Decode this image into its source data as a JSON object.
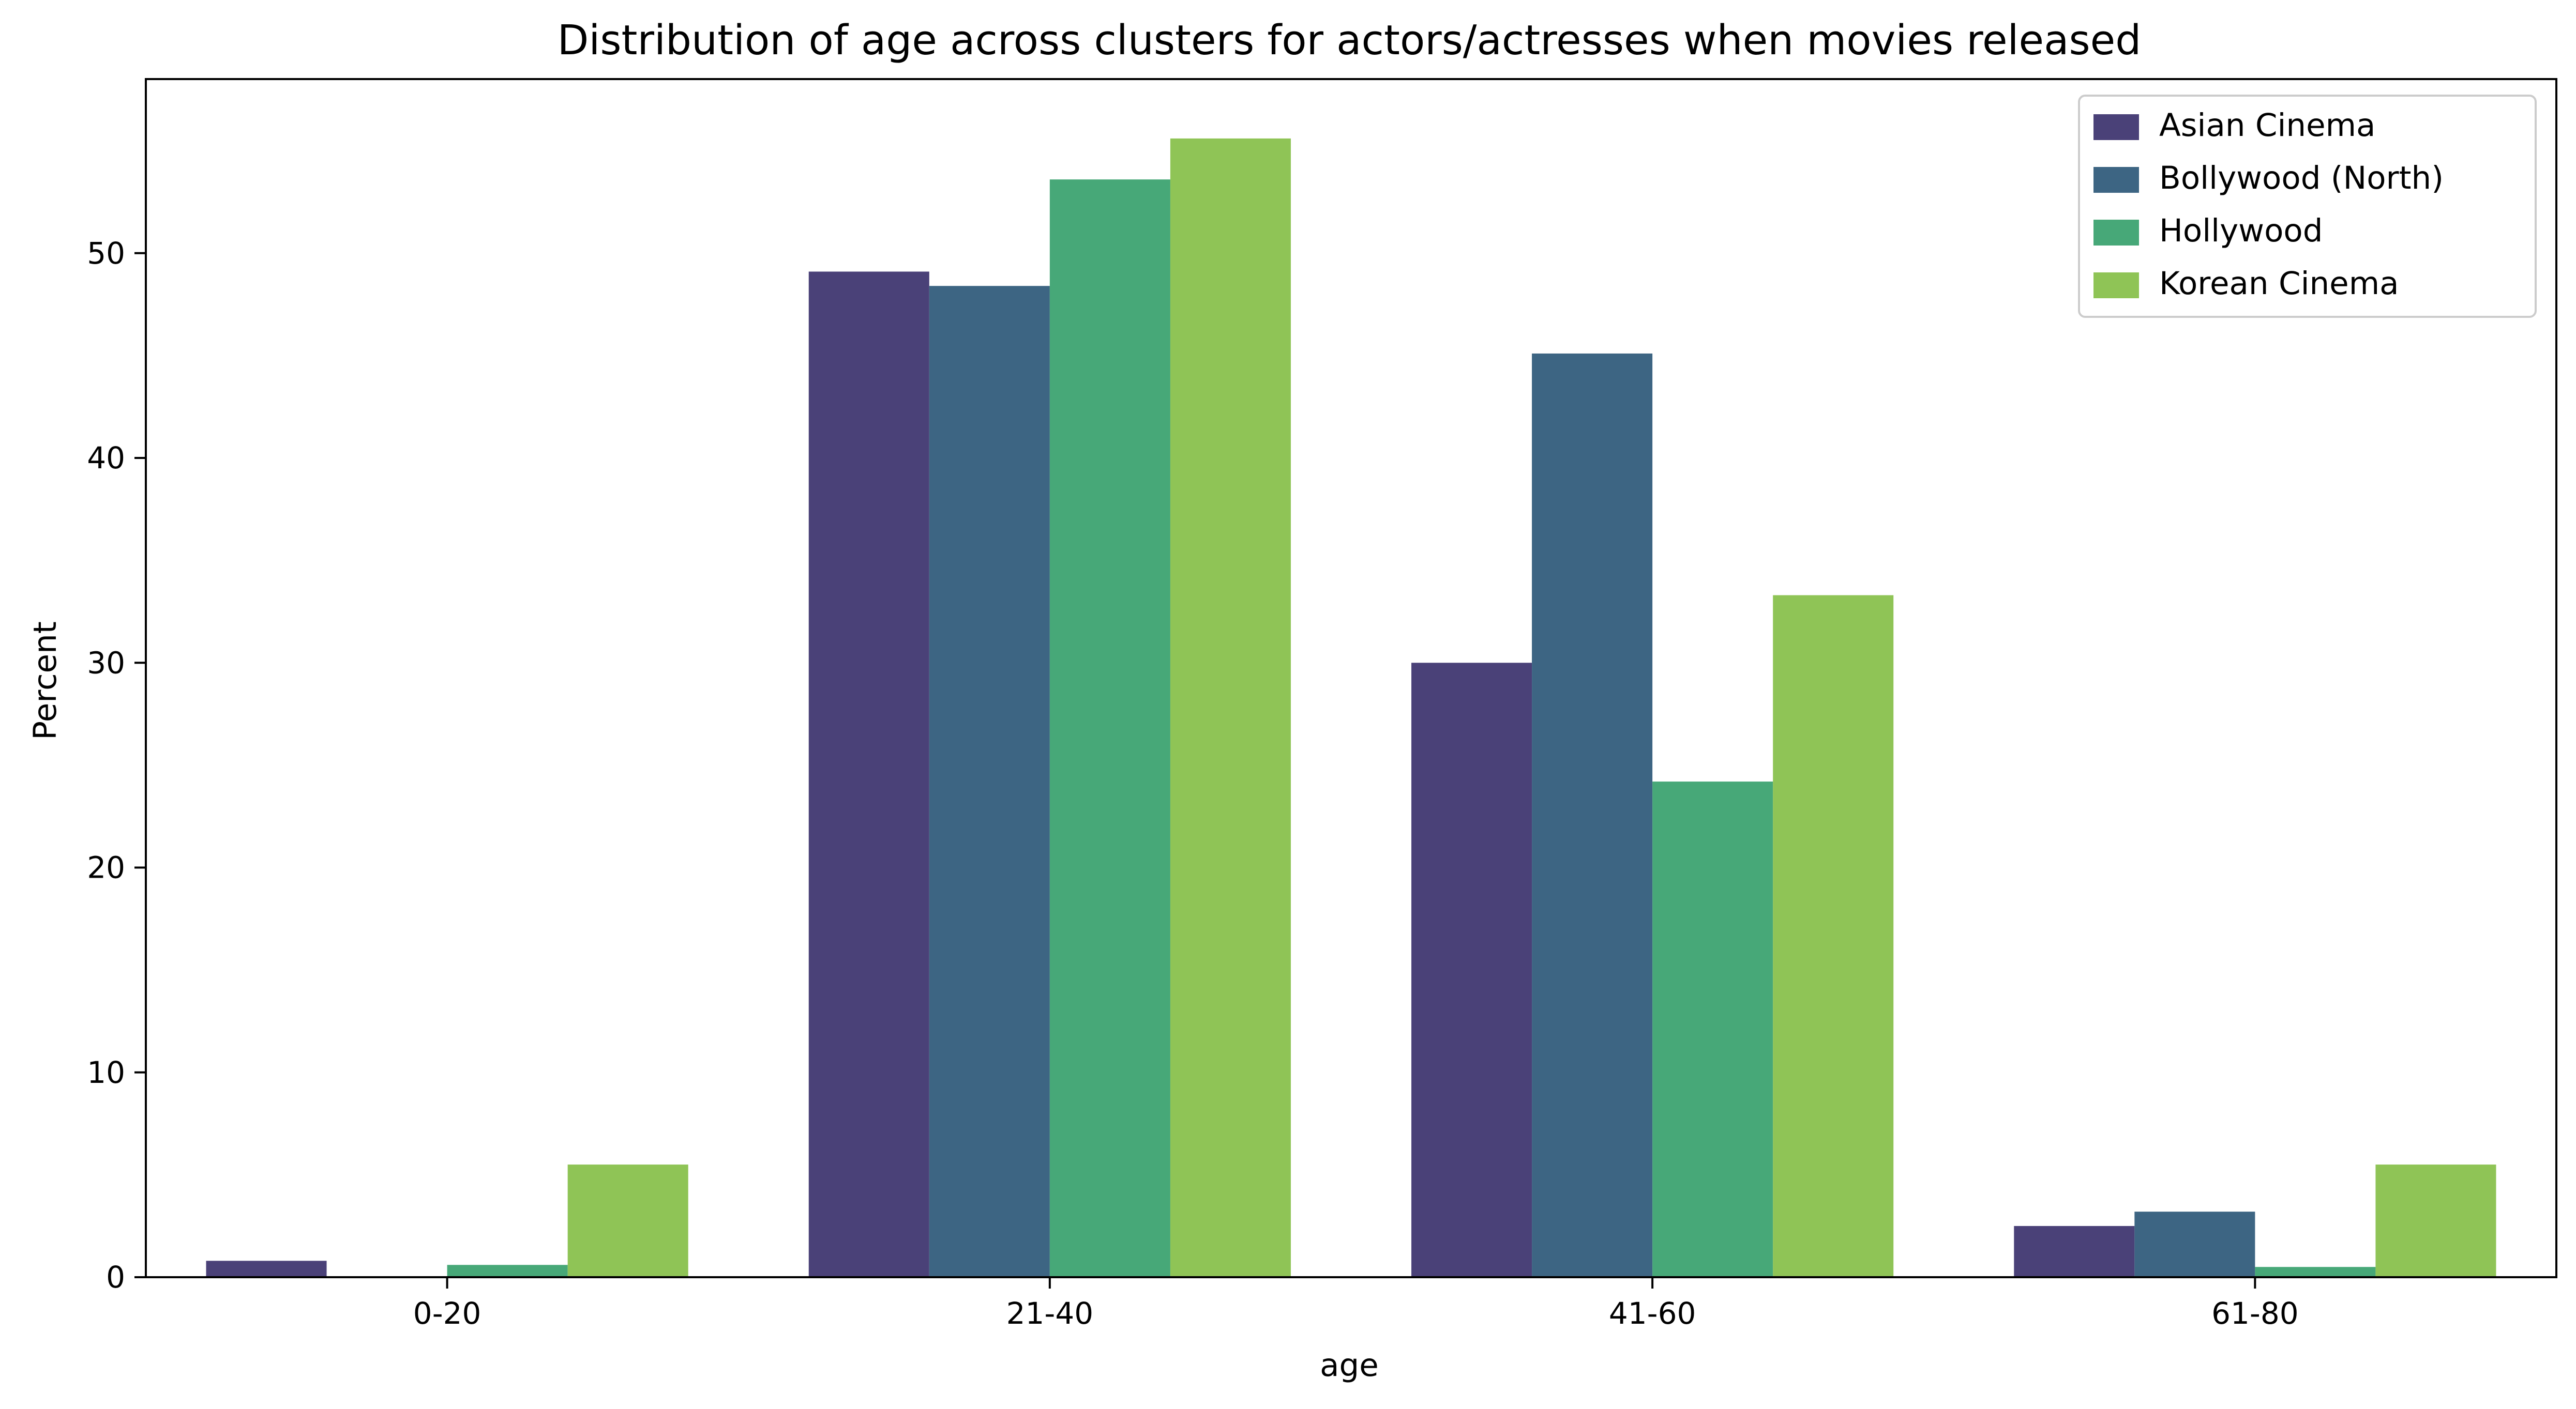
{
  "chart_data": {
    "type": "bar",
    "title": "Distribution of age across clusters for actors/actresses when movies released",
    "xlabel": "age",
    "ylabel": "Percent",
    "categories": [
      "0-20",
      "21-40",
      "41-60",
      "61-80"
    ],
    "ylim": [
      0,
      58.5
    ],
    "yticks": [
      0,
      10,
      20,
      30,
      40,
      50
    ],
    "grid": false,
    "legend_position": "top-right",
    "series": [
      {
        "name": "Asian Cinema",
        "color": "#4a4178",
        "values": [
          0.8,
          49.1,
          30.0,
          2.5
        ]
      },
      {
        "name": "Bollywood (North)",
        "color": "#3d6583",
        "values": [
          0.0,
          48.4,
          45.1,
          3.2
        ]
      },
      {
        "name": "Hollywood",
        "color": "#47a878",
        "values": [
          0.6,
          53.6,
          24.2,
          0.5
        ]
      },
      {
        "name": "Korean Cinema",
        "color": "#8fc456",
        "values": [
          5.5,
          55.6,
          33.3,
          5.5
        ]
      }
    ]
  }
}
